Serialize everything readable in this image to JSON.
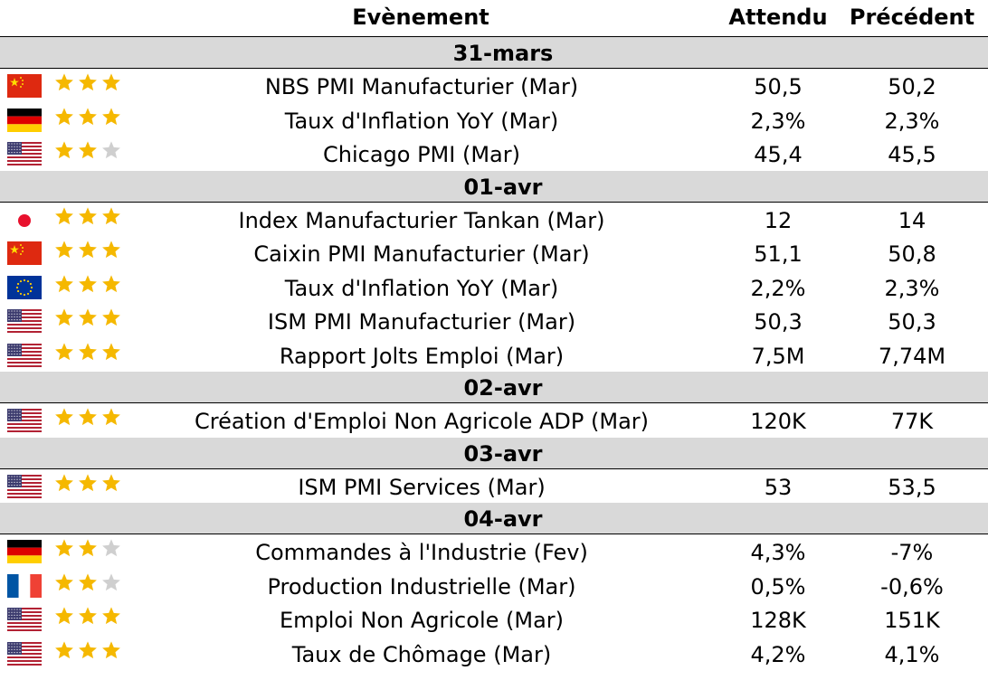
{
  "header": {
    "event": "Evènement",
    "expected": "Attendu",
    "previous": "Précédent"
  },
  "colors": {
    "date_band": "#d9d9d9",
    "star_on": "#f5b800",
    "star_off": "#cfcfcf"
  },
  "groups": [
    {
      "date": "31-mars",
      "events": [
        {
          "flag": "china-flag-icon",
          "stars": 3,
          "event": "NBS PMI Manufacturier (Mar)",
          "expected": "50,5",
          "previous": "50,2"
        },
        {
          "flag": "germany-flag-icon",
          "stars": 3,
          "event": "Taux d'Inflation YoY (Mar)",
          "expected": "2,3%",
          "previous": "2,3%"
        },
        {
          "flag": "usa-flag-icon",
          "stars": 2,
          "event": "Chicago PMI  (Mar)",
          "expected": "45,4",
          "previous": "45,5"
        }
      ]
    },
    {
      "date": "01-avr",
      "events": [
        {
          "flag": "japan-flag-icon",
          "stars": 3,
          "event": "Index Manufacturier Tankan (Mar)",
          "expected": "12",
          "previous": "14"
        },
        {
          "flag": "china-flag-icon",
          "stars": 3,
          "event": "Caixin PMI Manufacturier (Mar)",
          "expected": "51,1",
          "previous": "50,8"
        },
        {
          "flag": "eu-flag-icon",
          "stars": 3,
          "event": "Taux d'Inflation YoY (Mar)",
          "expected": "2,2%",
          "previous": "2,3%"
        },
        {
          "flag": "usa-flag-icon",
          "stars": 3,
          "event": "ISM PMI Manufacturier (Mar)",
          "expected": "50,3",
          "previous": "50,3"
        },
        {
          "flag": "usa-flag-icon",
          "stars": 3,
          "event": "Rapport Jolts Emploi (Mar)",
          "expected": "7,5M",
          "previous": "7,74M"
        }
      ]
    },
    {
      "date": "02-avr",
      "events": [
        {
          "flag": "usa-flag-icon",
          "stars": 3,
          "event": "Création d'Emploi Non Agricole ADP (Mar)",
          "expected": "120K",
          "previous": "77K"
        }
      ]
    },
    {
      "date": "03-avr",
      "events": [
        {
          "flag": "usa-flag-icon",
          "stars": 3,
          "event": "ISM PMI Services (Mar)",
          "expected": "53",
          "previous": "53,5"
        }
      ]
    },
    {
      "date": "04-avr",
      "events": [
        {
          "flag": "germany-flag-icon",
          "stars": 2,
          "event": "Commandes à l'Industrie (Fev)",
          "expected": "4,3%",
          "previous": "-7%"
        },
        {
          "flag": "france-flag-icon",
          "stars": 2,
          "event": "Production Industrielle (Mar)",
          "expected": "0,5%",
          "previous": "-0,6%"
        },
        {
          "flag": "usa-flag-icon",
          "stars": 3,
          "event": "Emploi Non Agricole (Mar)",
          "expected": "128K",
          "previous": "151K"
        },
        {
          "flag": "usa-flag-icon",
          "stars": 3,
          "event": "Taux de Chômage (Mar)",
          "expected": "4,2%",
          "previous": "4,1%"
        }
      ]
    }
  ]
}
